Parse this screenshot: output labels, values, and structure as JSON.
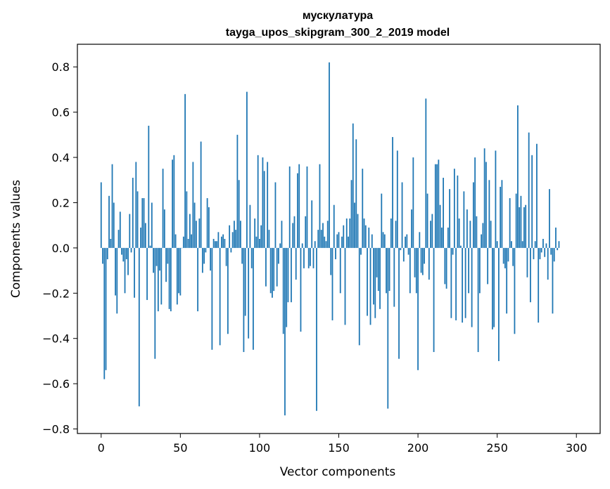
{
  "chart_data": {
    "type": "bar",
    "title_line1": "мускулатура",
    "title_line2": "tayga_upos_skipgram_300_2_2019 model",
    "xlabel": "Vector components",
    "ylabel": "Components values",
    "xlim": [
      -15,
      315
    ],
    "ylim": [
      -0.82,
      0.9
    ],
    "xticks": [
      0,
      50,
      100,
      150,
      200,
      250,
      300
    ],
    "yticks": [
      -0.8,
      -0.6,
      -0.4,
      -0.2,
      0.0,
      0.2,
      0.4,
      0.6,
      0.8
    ],
    "ytick_labels": [
      "−0.8",
      "−0.6",
      "−0.4",
      "−0.2",
      "0.0",
      "0.2",
      "0.4",
      "0.6",
      "0.8"
    ],
    "bar_color": "#1f77b4",
    "grid": false,
    "legend": "none",
    "values": [
      0.29,
      -0.07,
      -0.58,
      -0.54,
      -0.05,
      0.23,
      0.04,
      0.37,
      0.2,
      -0.21,
      -0.29,
      0.08,
      0.16,
      -0.03,
      -0.06,
      -0.2,
      -0.05,
      -0.12,
      0.15,
      -0.02,
      0.31,
      -0.22,
      0.38,
      0.25,
      -0.7,
      0.09,
      0.22,
      0.22,
      0.11,
      -0.23,
      0.54,
      0.01,
      0.2,
      -0.11,
      -0.49,
      -0.08,
      -0.28,
      -0.1,
      -0.25,
      0.35,
      0.17,
      -0.15,
      -0.07,
      -0.27,
      -0.28,
      0.39,
      0.41,
      0.06,
      -0.25,
      -0.2,
      -0.21,
      0.0,
      0.05,
      0.68,
      0.25,
      0.04,
      0.15,
      0.06,
      0.38,
      0.2,
      0.12,
      -0.28,
      0.13,
      0.47,
      -0.11,
      -0.07,
      -0.02,
      0.22,
      0.18,
      -0.1,
      -0.45,
      0.04,
      0.03,
      0.03,
      0.07,
      -0.43,
      0.05,
      0.06,
      0.04,
      -0.08,
      -0.38,
      0.1,
      -0.02,
      0.07,
      0.12,
      0.08,
      0.5,
      0.3,
      0.12,
      -0.07,
      -0.46,
      -0.3,
      0.69,
      -0.4,
      0.19,
      -0.09,
      -0.45,
      0.13,
      0.05,
      0.41,
      0.04,
      0.1,
      0.4,
      0.34,
      -0.17,
      0.38,
      0.08,
      -0.2,
      -0.22,
      -0.19,
      0.29,
      -0.17,
      -0.07,
      0.02,
      0.12,
      -0.38,
      -0.74,
      -0.35,
      -0.24,
      0.36,
      -0.24,
      0.11,
      0.14,
      -0.14,
      0.33,
      0.37,
      -0.37,
      0.02,
      -0.09,
      0.14,
      0.36,
      -0.09,
      -0.08,
      0.21,
      -0.09,
      0.03,
      -0.72,
      0.08,
      0.37,
      0.08,
      0.11,
      0.05,
      0.03,
      0.12,
      0.82,
      -0.12,
      -0.32,
      0.19,
      -0.05,
      0.06,
      0.07,
      -0.2,
      0.05,
      0.1,
      -0.34,
      0.13,
      0.05,
      0.13,
      0.3,
      0.55,
      0.2,
      0.48,
      0.15,
      -0.43,
      -0.03,
      0.35,
      0.13,
      0.1,
      -0.3,
      0.09,
      -0.34,
      0.06,
      -0.25,
      -0.31,
      -0.13,
      -0.19,
      -0.27,
      0.24,
      0.07,
      0.06,
      -0.2,
      -0.71,
      -0.19,
      0.13,
      0.49,
      -0.26,
      0.12,
      0.43,
      -0.49,
      -0.01,
      0.29,
      -0.06,
      0.05,
      0.06,
      -0.03,
      -0.2,
      0.17,
      0.4,
      -0.13,
      -0.2,
      -0.54,
      0.07,
      -0.11,
      -0.12,
      -0.07,
      0.66,
      0.24,
      -0.14,
      0.12,
      0.15,
      -0.46,
      0.37,
      0.37,
      0.39,
      0.19,
      0.09,
      0.31,
      -0.16,
      -0.18,
      0.09,
      0.26,
      -0.31,
      -0.03,
      0.35,
      -0.32,
      0.32,
      0.13,
      0.01,
      -0.33,
      0.25,
      -0.31,
      0.17,
      -0.2,
      0.12,
      -0.35,
      0.29,
      0.4,
      0.14,
      -0.46,
      -0.2,
      0.06,
      0.11,
      0.44,
      0.38,
      -0.16,
      0.3,
      0.12,
      -0.36,
      -0.35,
      0.43,
      0.03,
      -0.5,
      0.27,
      0.3,
      -0.07,
      -0.09,
      -0.29,
      -0.06,
      0.22,
      0.03,
      -0.08,
      -0.38,
      0.24,
      0.63,
      0.18,
      0.23,
      0.03,
      0.18,
      0.19,
      -0.13,
      0.51,
      -0.24,
      0.41,
      -0.05,
      0.03,
      0.46,
      -0.33,
      -0.05,
      -0.02,
      0.04,
      -0.04,
      0.02,
      -0.14,
      0.26,
      -0.03,
      -0.29,
      -0.06,
      0.09,
      -0.01,
      0.03
    ]
  }
}
